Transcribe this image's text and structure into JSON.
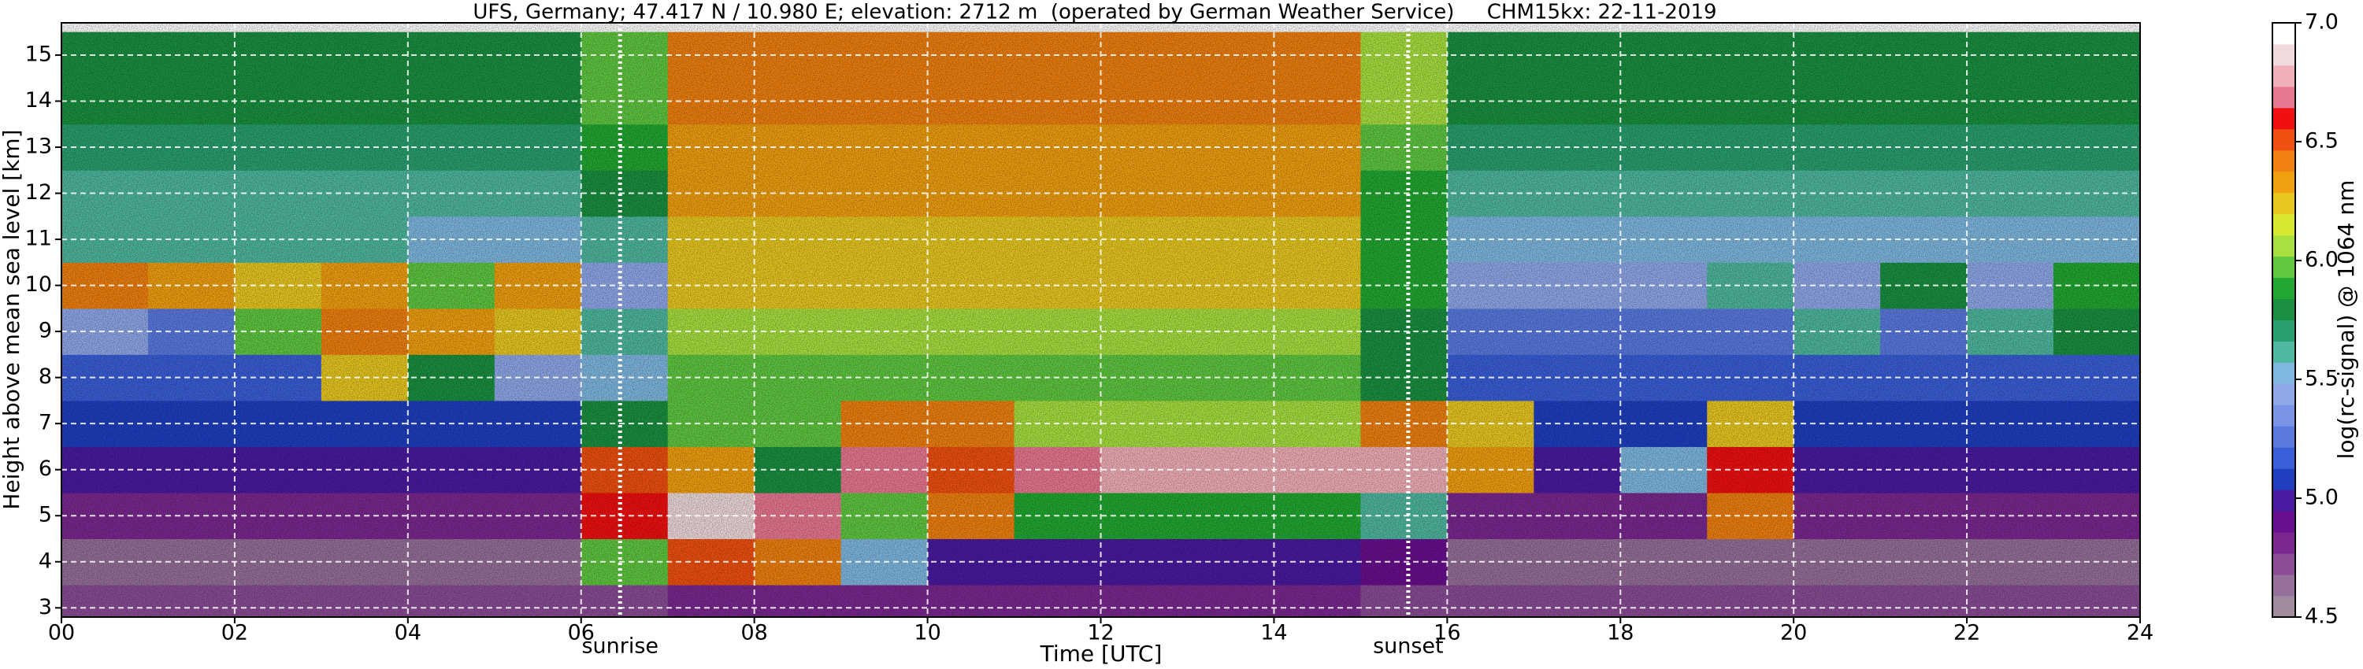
{
  "chart_data": {
    "type": "heatmap",
    "title": "UFS, Germany; 47.417 N / 10.980 E; elevation: 2712 m  (operated by German Weather Service)     CHM15kx: 22-11-2019",
    "x_label": "Time [UTC]",
    "y_label": "Height above mean sea level [km]",
    "colorbar_label": "log(rc-signal) @ 1064 nm",
    "x": [
      0.5,
      1.5,
      2.5,
      3.5,
      4.5,
      5.5,
      6.5,
      7.5,
      8.5,
      9.5,
      10.5,
      11.5,
      12.5,
      13.5,
      14.5,
      15.5,
      16.5,
      17.5,
      18.5,
      19.5,
      20.5,
      21.5,
      22.5,
      23.5
    ],
    "y": [
      3,
      4,
      5,
      6,
      7,
      8,
      9,
      10,
      11,
      12,
      13,
      14,
      15
    ],
    "z": [
      [
        4.7,
        4.7,
        4.7,
        4.7,
        4.7,
        4.7,
        4.7,
        4.8,
        4.8,
        4.8,
        4.8,
        4.8,
        4.8,
        4.8,
        4.8,
        4.7,
        4.7,
        4.7,
        4.7,
        4.7,
        4.7,
        4.7,
        4.7,
        4.7
      ],
      [
        4.6,
        4.6,
        4.6,
        4.6,
        4.6,
        4.6,
        6.0,
        6.5,
        6.4,
        5.5,
        5.0,
        5.0,
        5.0,
        5.0,
        5.0,
        4.9,
        4.6,
        4.6,
        4.6,
        4.6,
        4.6,
        4.6,
        4.6,
        4.6
      ],
      [
        4.8,
        4.8,
        4.8,
        4.8,
        4.8,
        4.8,
        6.6,
        6.9,
        6.7,
        6.0,
        6.4,
        5.9,
        5.9,
        5.9,
        5.9,
        5.6,
        4.8,
        4.8,
        4.8,
        6.4,
        4.8,
        4.8,
        4.8,
        4.8
      ],
      [
        5.0,
        5.0,
        5.0,
        5.0,
        5.0,
        5.0,
        6.5,
        6.3,
        5.8,
        6.7,
        6.5,
        6.7,
        6.8,
        6.8,
        6.8,
        6.8,
        6.3,
        5.0,
        5.5,
        6.6,
        5.0,
        5.0,
        5.0,
        5.0
      ],
      [
        5.1,
        5.1,
        5.1,
        5.1,
        5.1,
        5.1,
        5.8,
        6.0,
        6.0,
        6.4,
        6.4,
        6.1,
        6.1,
        6.1,
        6.1,
        6.4,
        6.2,
        5.1,
        5.1,
        6.2,
        5.1,
        5.1,
        5.1,
        5.1
      ],
      [
        5.2,
        5.2,
        5.2,
        6.2,
        5.8,
        5.4,
        5.5,
        6.0,
        6.0,
        6.0,
        6.0,
        6.0,
        6.0,
        6.0,
        6.0,
        5.8,
        5.2,
        5.2,
        5.2,
        5.2,
        5.2,
        5.2,
        5.2,
        5.2
      ],
      [
        5.4,
        5.3,
        6.0,
        6.4,
        6.3,
        6.2,
        5.6,
        6.1,
        6.1,
        6.1,
        6.1,
        6.1,
        6.1,
        6.1,
        6.1,
        5.8,
        5.3,
        5.3,
        5.3,
        5.3,
        5.6,
        5.3,
        5.6,
        5.8
      ],
      [
        6.4,
        6.3,
        6.2,
        6.3,
        6.0,
        6.3,
        5.4,
        6.2,
        6.2,
        6.2,
        6.2,
        6.2,
        6.2,
        6.2,
        6.2,
        5.9,
        5.4,
        5.4,
        5.4,
        5.6,
        5.4,
        5.8,
        5.4,
        5.9
      ],
      [
        5.6,
        5.6,
        5.6,
        5.6,
        5.5,
        5.5,
        5.6,
        6.2,
        6.2,
        6.2,
        6.2,
        6.2,
        6.2,
        6.2,
        6.2,
        5.9,
        5.5,
        5.5,
        5.5,
        5.5,
        5.5,
        5.5,
        5.5,
        5.5
      ],
      [
        5.6,
        5.6,
        5.6,
        5.6,
        5.6,
        5.6,
        5.8,
        6.3,
        6.3,
        6.3,
        6.3,
        6.3,
        6.3,
        6.3,
        6.3,
        5.9,
        5.6,
        5.6,
        5.6,
        5.6,
        5.6,
        5.6,
        5.6,
        5.6
      ],
      [
        5.7,
        5.7,
        5.7,
        5.7,
        5.7,
        5.7,
        5.9,
        6.3,
        6.3,
        6.3,
        6.3,
        6.3,
        6.3,
        6.3,
        6.3,
        6.0,
        5.7,
        5.7,
        5.7,
        5.7,
        5.7,
        5.7,
        5.7,
        5.7
      ],
      [
        5.8,
        5.8,
        5.8,
        5.8,
        5.8,
        5.8,
        6.0,
        6.4,
        6.4,
        6.4,
        6.4,
        6.4,
        6.4,
        6.4,
        6.4,
        6.1,
        5.8,
        5.8,
        5.8,
        5.8,
        5.8,
        5.8,
        5.8,
        5.8
      ],
      [
        5.8,
        5.8,
        5.8,
        5.8,
        5.8,
        5.8,
        6.0,
        6.4,
        6.4,
        6.4,
        6.4,
        6.4,
        6.4,
        6.4,
        6.4,
        6.1,
        5.8,
        5.8,
        5.8,
        5.8,
        5.8,
        5.8,
        5.8,
        5.8
      ]
    ],
    "xlim": [
      0,
      24
    ],
    "xticks": [
      {
        "value": 0,
        "label": "00"
      },
      {
        "value": 2,
        "label": "02"
      },
      {
        "value": 4,
        "label": "04"
      },
      {
        "value": 6,
        "label": "06"
      },
      {
        "value": 8,
        "label": "08"
      },
      10,
      12,
      14,
      16,
      18,
      20,
      22,
      24
    ],
    "ylim": [
      2.8,
      15.7
    ],
    "yticks": [
      3,
      4,
      5,
      6,
      7,
      8,
      9,
      10,
      11,
      12,
      13,
      14,
      15
    ],
    "zlim": [
      4.5,
      7.0
    ],
    "zticks": [
      4.5,
      {
        "value": 5,
        "label": "5.0"
      },
      5.5,
      {
        "value": 6,
        "label": "6.0"
      },
      6.5,
      {
        "value": 7,
        "label": "7.0"
      }
    ],
    "colorscale": [
      "#a08c9e",
      "#96709a",
      "#8a4d96",
      "#7a2890",
      "#6a0f8e",
      "#4a1aa0",
      "#1f3fc0",
      "#3a5fd8",
      "#5a7ae0",
      "#7a94e6",
      "#8fa8e8",
      "#80b8e0",
      "#4fb8a0",
      "#2aa070",
      "#1a9040",
      "#22a832",
      "#60c840",
      "#a8e040",
      "#d8e830",
      "#e8c820",
      "#f0a010",
      "#f08010",
      "#f05010",
      "#f01010",
      "#e87890",
      "#f0b0b8",
      "#f0dadb",
      "#ffffff"
    ],
    "grid": true,
    "annotations": [
      {
        "text": "sunrise",
        "x": 6.45
      },
      {
        "text": "sunset",
        "x": 15.55
      }
    ]
  }
}
